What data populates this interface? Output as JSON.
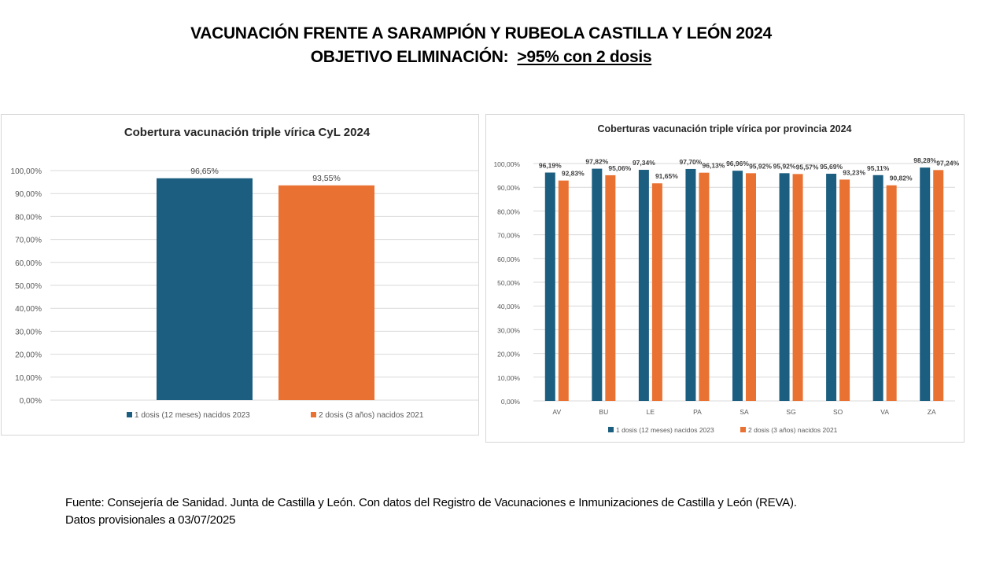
{
  "slide": {
    "title_line1": "VACUNACIÓN FRENTE A SARAMPIÓN Y RUBEOLA  CASTILLA Y LEÓN 2024",
    "title_line2_prefix": "OBJETIVO ELIMINACIÓN:  ",
    "title_line2_target": ">95% con 2 dosis",
    "footer_line1": "Fuente: Consejería de Sanidad. Junta de Castilla y León.  Con datos del Registro de Vacunaciones e Inmunizaciones  de Castilla y León (REVA).",
    "footer_line2": "Datos provisionales a 03/07/2025"
  },
  "colors": {
    "dose1": "#1b5e80",
    "dose2": "#e97132",
    "grid": "#d9d9d9",
    "axis_text": "#595959",
    "label_text": "#404040"
  },
  "chart_data": [
    {
      "type": "bar",
      "title": "Cobertura vacunación  triple vírica CyL 2024",
      "categories": [
        ""
      ],
      "series": [
        {
          "name": "1 dosis (12  meses) nacidos 2023",
          "values": [
            96.65
          ],
          "labels": [
            "96,65%"
          ]
        },
        {
          "name": "2 dosis  (3 años) nacidos 2021",
          "values": [
            93.55
          ],
          "labels": [
            "93,55%"
          ]
        }
      ],
      "ylim": [
        0,
        100
      ],
      "yticks": [
        "0,00%",
        "10,00%",
        "20,00%",
        "30,00%",
        "40,00%",
        "50,00%",
        "60,00%",
        "70,00%",
        "80,00%",
        "90,00%",
        "100,00%"
      ],
      "xlabel": "",
      "ylabel": "",
      "grid": true,
      "legend": "bottom"
    },
    {
      "type": "bar",
      "title": "Coberturas vacunación  triple vírica  por provincia 2024",
      "categories": [
        "AV",
        "BU",
        "LE",
        "PA",
        "SA",
        "SG",
        "SO",
        "VA",
        "ZA"
      ],
      "series": [
        {
          "name": "1 dosis (12  meses) nacidos 2023",
          "values": [
            96.19,
            97.82,
            97.34,
            97.7,
            96.96,
            95.92,
            95.69,
            95.11,
            98.28
          ],
          "labels": [
            "96,19%",
            "97,82%",
            "97,34%",
            "97,70%",
            "96,96%",
            "95,92%",
            "95,69%",
            "95,11%",
            "98,28%"
          ]
        },
        {
          "name": "2 dosis  (3 años) nacidos 2021",
          "values": [
            92.83,
            95.06,
            91.65,
            96.13,
            95.92,
            95.57,
            93.23,
            90.82,
            97.24
          ],
          "labels": [
            "92,83%",
            "95,06%",
            "91,65%",
            "96,13%",
            "95,92%",
            "95,57%",
            "93,23%",
            "90,82%",
            "97,24%"
          ]
        }
      ],
      "ylim": [
        0,
        100
      ],
      "yticks": [
        "0,00%",
        "10,00%",
        "20,00%",
        "30,00%",
        "40,00%",
        "50,00%",
        "60,00%",
        "70,00%",
        "80,00%",
        "90,00%",
        "100,00%"
      ],
      "xlabel": "",
      "ylabel": "",
      "grid": true,
      "legend": "bottom"
    }
  ]
}
